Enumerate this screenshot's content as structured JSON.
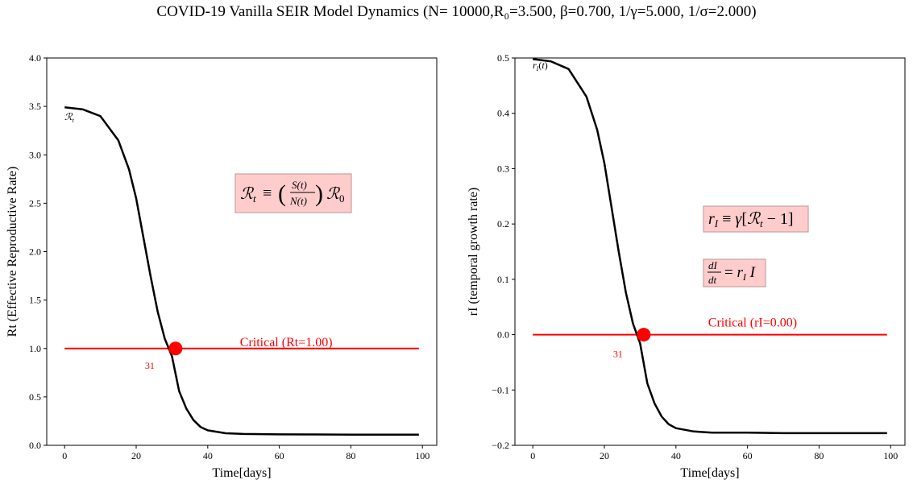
{
  "suptitle": "COVID-19 Vanilla SEIR Model Dynamics (N= 10000,R₀=3.500, β=0.700, 1/γ=5.000, 1/σ=2.000)",
  "colors": {
    "curve": "#000000",
    "critical": "#ff0000",
    "box_fill": "#ffcccc",
    "box_edge": "#c8a0a0"
  },
  "chart_data": [
    {
      "type": "line",
      "title": "",
      "xlabel": "Time[days]",
      "ylabel": "Rt (Effective Reproductive Rate)",
      "xlim": [
        -5,
        104
      ],
      "ylim": [
        0.0,
        4.0
      ],
      "xticks": [
        0,
        20,
        40,
        60,
        80,
        100
      ],
      "yticks": [
        0.0,
        0.5,
        1.0,
        1.5,
        2.0,
        2.5,
        3.0,
        3.5,
        4.0
      ],
      "ytick_decimals": 1,
      "grid": false,
      "series": [
        {
          "name": "ℛt",
          "color": "#000000",
          "x": [
            0,
            5,
            10,
            15,
            18,
            20,
            22,
            24,
            26,
            28,
            30,
            31,
            32,
            34,
            36,
            38,
            40,
            45,
            50,
            60,
            70,
            80,
            90,
            99
          ],
          "y": [
            3.49,
            3.47,
            3.4,
            3.15,
            2.85,
            2.55,
            2.15,
            1.75,
            1.38,
            1.1,
            0.92,
            1.0,
            0.56,
            0.38,
            0.26,
            0.19,
            0.155,
            0.125,
            0.117,
            0.113,
            0.112,
            0.111,
            0.111,
            0.111
          ]
        }
      ],
      "critical": {
        "value": 1.0,
        "x_start": 0,
        "x_end": 99,
        "label": "Critical (Rt=1.00)"
      },
      "marker": {
        "x": 31,
        "y": 1.0,
        "label": "31"
      },
      "formulas": [
        "ℛt ≡ (S(t)/N(t)) ℛ0"
      ]
    },
    {
      "type": "line",
      "title": "",
      "xlabel": "Time[days]",
      "ylabel": "rI (temporal growth rate)",
      "xlim": [
        -5,
        104
      ],
      "ylim": [
        -0.2,
        0.5
      ],
      "xticks": [
        0,
        20,
        40,
        60,
        80,
        100
      ],
      "yticks": [
        -0.2,
        -0.1,
        0.0,
        0.1,
        0.2,
        0.3,
        0.4,
        0.5
      ],
      "ytick_decimals": 1,
      "grid": false,
      "series": [
        {
          "name": "rI(t)",
          "color": "#000000",
          "x": [
            0,
            5,
            10,
            15,
            18,
            20,
            22,
            24,
            26,
            28,
            30,
            31,
            32,
            34,
            36,
            38,
            40,
            45,
            50,
            60,
            70,
            80,
            90,
            99
          ],
          "y": [
            0.498,
            0.494,
            0.48,
            0.43,
            0.37,
            0.31,
            0.23,
            0.15,
            0.076,
            0.02,
            -0.016,
            0.0,
            -0.088,
            -0.124,
            -0.148,
            -0.162,
            -0.169,
            -0.175,
            -0.177,
            -0.177,
            -0.178,
            -0.178,
            -0.178,
            -0.178
          ]
        }
      ],
      "critical": {
        "value": 0.0,
        "x_start": 0,
        "x_end": 99,
        "label": "Critical (rI=0.00)"
      },
      "marker": {
        "x": 31,
        "y": 0.0,
        "label": "31"
      },
      "formulas": [
        "rI ≡ γ[ℛt − 1]",
        "dI/dt = rI I"
      ]
    }
  ]
}
